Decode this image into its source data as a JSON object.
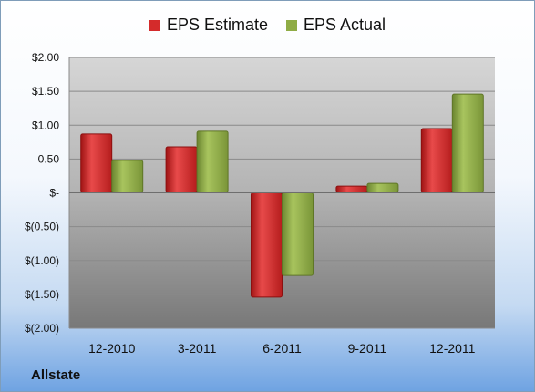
{
  "chart_data": {
    "type": "bar",
    "categories": [
      "12-2010",
      "3-2011",
      "6-2011",
      "9-2011",
      "12-2011"
    ],
    "series": [
      {
        "name": "EPS Estimate",
        "values": [
          0.87,
          0.68,
          -1.54,
          0.1,
          0.95
        ],
        "color": "#d42b2b"
      },
      {
        "name": "EPS Actual",
        "values": [
          0.48,
          0.91,
          -1.22,
          0.14,
          1.46
        ],
        "color": "#8fac45"
      }
    ],
    "y_ticks": [
      {
        "value": 2.0,
        "label": "$2.00"
      },
      {
        "value": 1.5,
        "label": "$1.50"
      },
      {
        "value": 1.0,
        "label": "$1.00"
      },
      {
        "value": 0.5,
        "label": "0.50"
      },
      {
        "value": 0.0,
        "label": "$-"
      },
      {
        "value": -0.5,
        "label": "$(0.50)"
      },
      {
        "value": -1.0,
        "label": "$(1.00)"
      },
      {
        "value": -1.5,
        "label": "$(1.50)"
      },
      {
        "value": -2.0,
        "label": "$(2.00)"
      }
    ],
    "ylim": [
      -2,
      2
    ],
    "grid": true,
    "legend_position": "top"
  },
  "company": "Allstate"
}
